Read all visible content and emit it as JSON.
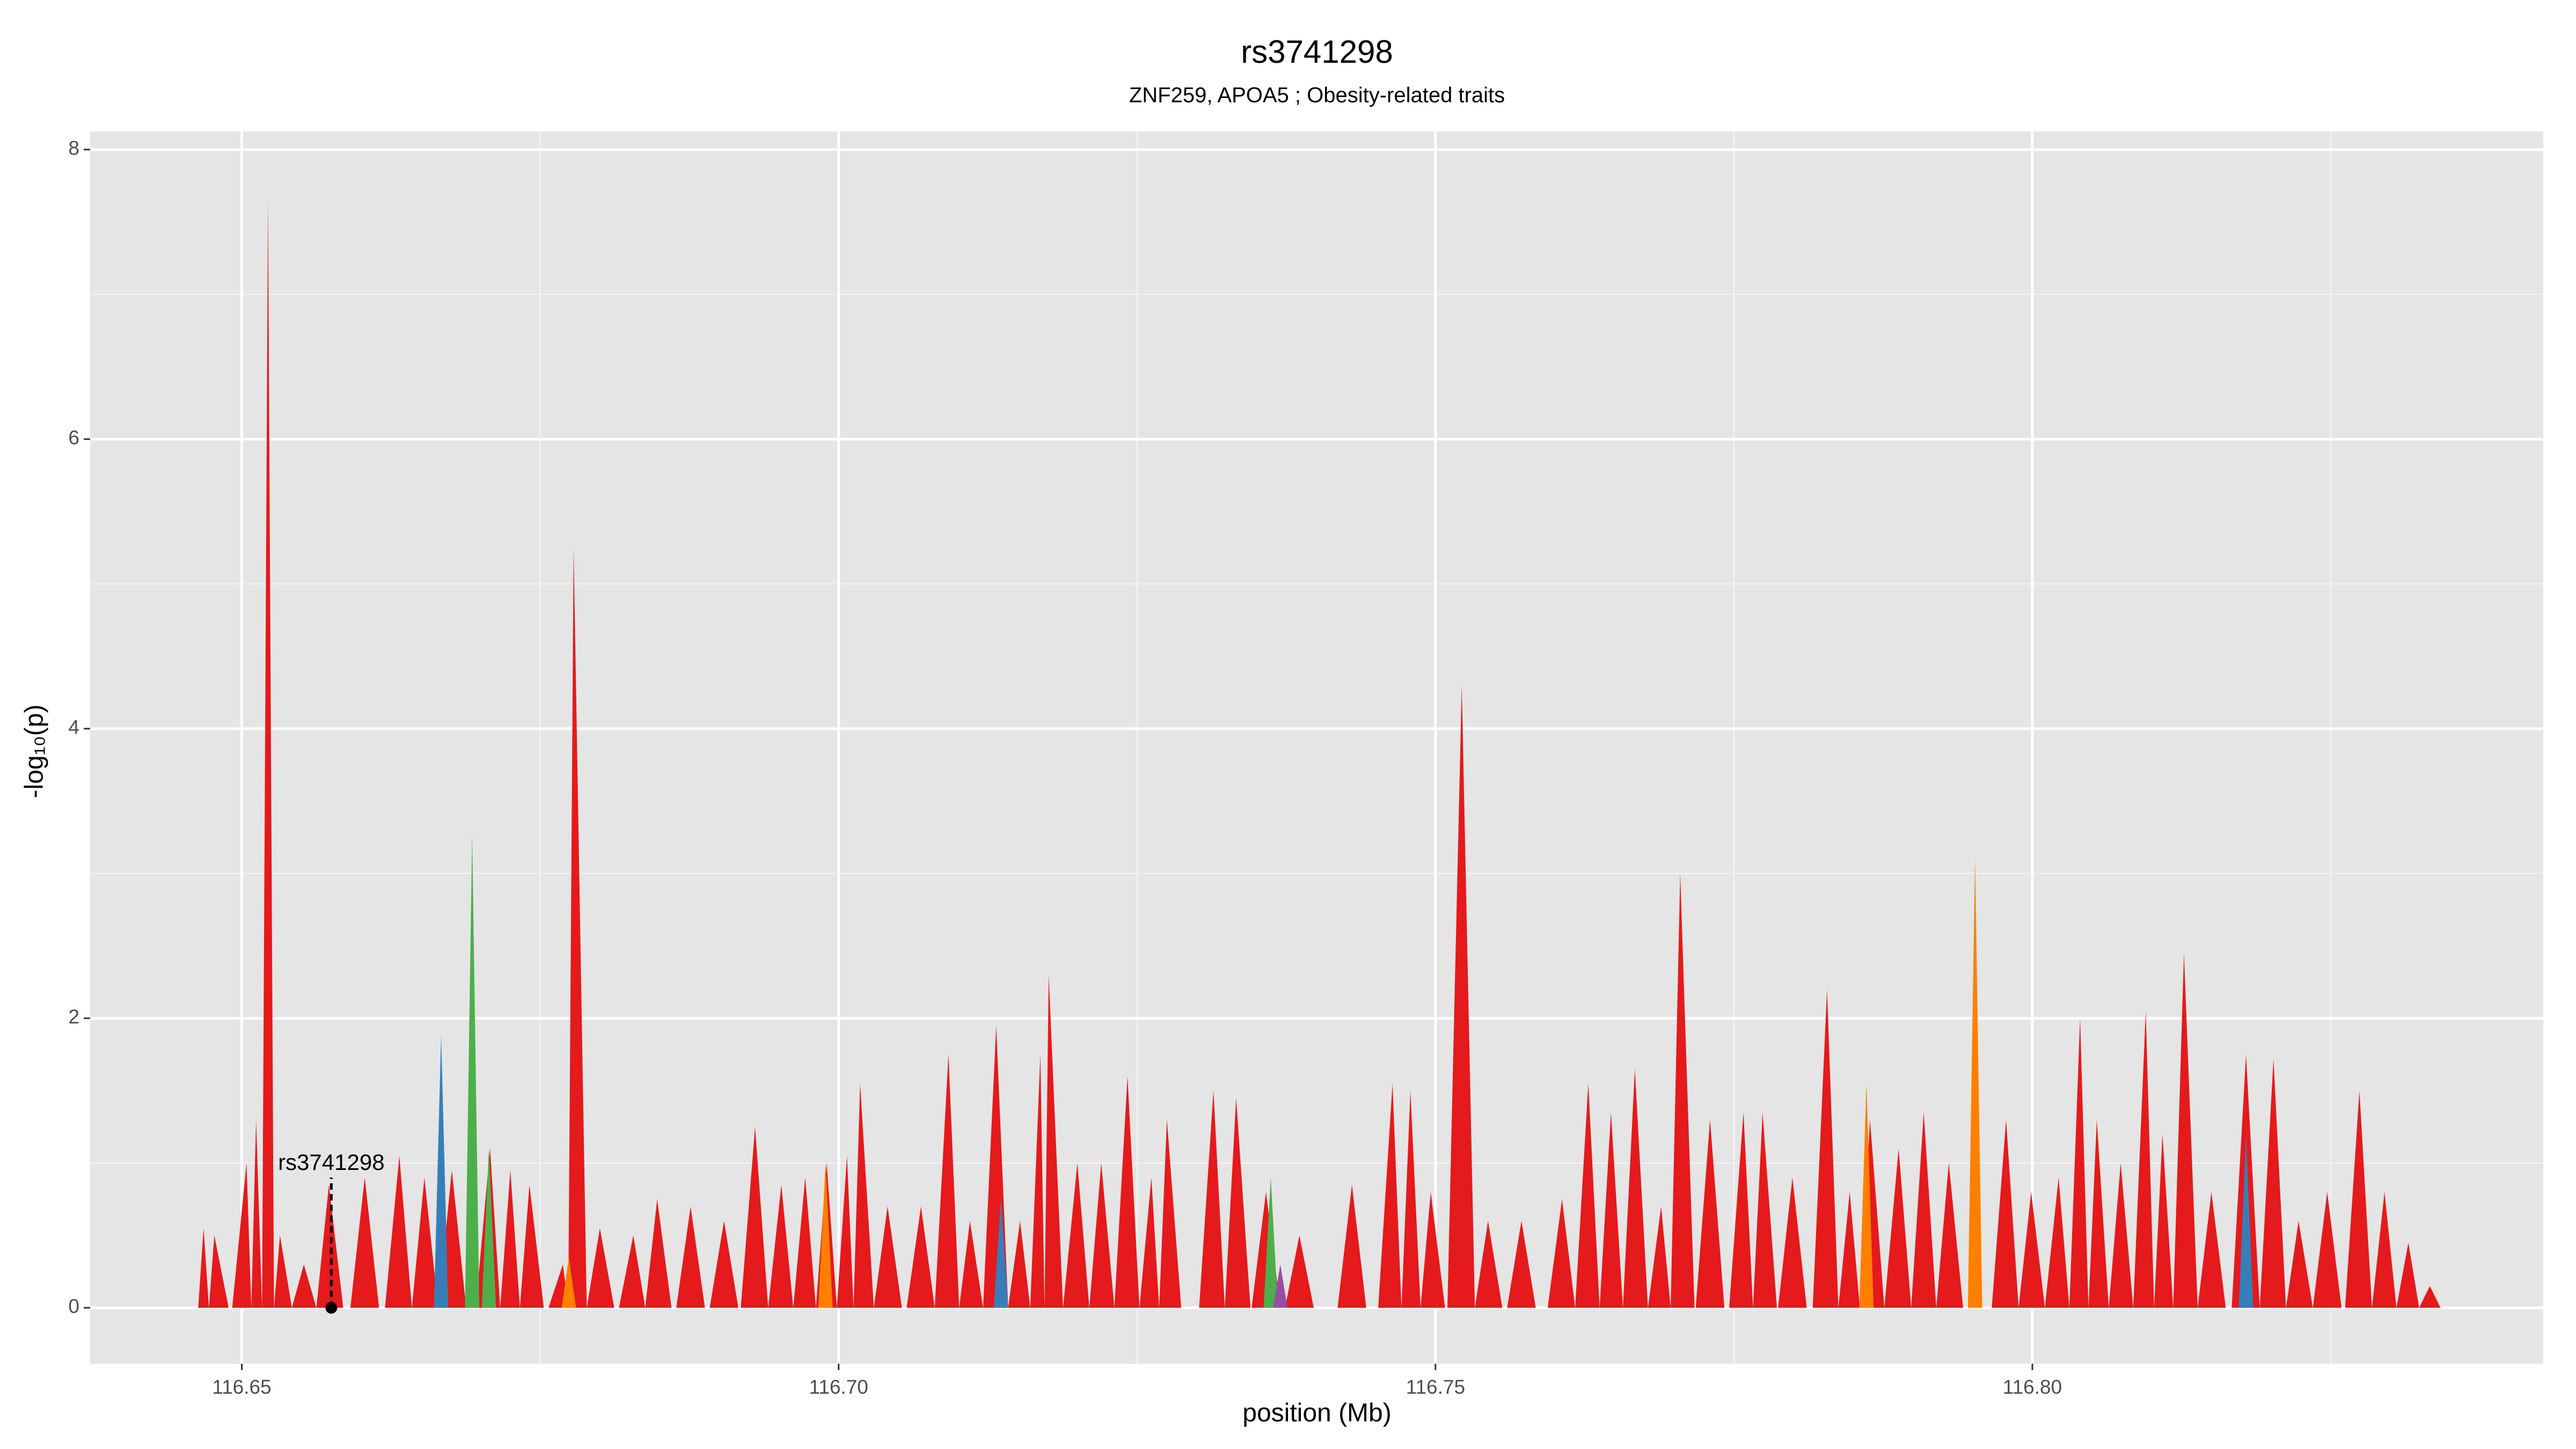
{
  "chart_data": {
    "type": "spike-area",
    "title": "rs3741298",
    "subtitle": "ZNF259, APOA5 ; Obesity-related traits",
    "x_label": "position (Mb)",
    "y_label": "-log₁₀(p)",
    "xlim": [
      116.6373,
      116.8428
    ],
    "ylim": [
      -0.386,
      8.125
    ],
    "xticks": [
      116.65,
      {
        "value": 116.7,
        "label": "116.70"
      },
      116.75,
      {
        "value": 116.8,
        "label": "116.80"
      }
    ],
    "yticks": [
      0,
      2,
      4,
      6,
      8
    ],
    "grid": true,
    "background": "#e5e5e5",
    "series": [
      {
        "color": "#e41a1c",
        "x": [
          116.6468,
          116.6477,
          116.6504,
          116.6512,
          116.6522,
          116.6532,
          116.6552,
          116.6573,
          116.6603,
          116.6632,
          116.6653,
          116.6676,
          116.6708,
          116.6725,
          116.6741,
          116.6769,
          116.6778,
          116.68,
          116.6828,
          116.6848,
          116.6876,
          116.6904,
          116.693,
          116.6952,
          116.6972,
          116.699,
          116.7007,
          116.7018,
          116.7041,
          116.7069,
          116.7092,
          116.711,
          116.7132,
          116.7152,
          116.7169,
          116.7176,
          116.72,
          116.722,
          116.7242,
          116.7262,
          116.7275,
          116.7314,
          116.7333,
          116.7358,
          116.7386,
          116.743,
          116.7464,
          116.7479,
          116.7496,
          116.7522,
          116.7544,
          116.7572,
          116.7606,
          116.7628,
          116.7647,
          116.7667,
          116.7689,
          116.7705,
          116.773,
          116.7758,
          116.7774,
          116.7799,
          116.7828,
          116.7847,
          116.7864,
          116.7888,
          116.7909,
          116.793,
          116.7978,
          116.7999,
          116.8022,
          116.804,
          116.8054,
          116.8074,
          116.8095,
          116.8109,
          116.8127,
          116.815,
          116.8179,
          116.8202,
          116.8223,
          116.8247,
          116.8274,
          116.8295,
          116.8315,
          116.8333
        ],
        "values": [
          0.55,
          0.5,
          1.0,
          1.3,
          7.65,
          0.5,
          0.3,
          0.85,
          0.9,
          1.05,
          0.9,
          0.95,
          1.1,
          0.95,
          0.85,
          0.3,
          5.25,
          0.55,
          0.5,
          0.75,
          0.7,
          0.6,
          1.25,
          0.85,
          0.9,
          1.0,
          1.05,
          1.55,
          0.7,
          0.7,
          1.75,
          0.6,
          1.95,
          0.6,
          1.75,
          2.3,
          1.0,
          1.0,
          1.6,
          0.9,
          1.3,
          1.5,
          1.45,
          0.8,
          0.5,
          0.85,
          1.55,
          1.5,
          0.8,
          4.3,
          0.6,
          0.6,
          0.75,
          1.55,
          1.35,
          1.65,
          0.7,
          3.0,
          1.3,
          1.35,
          1.35,
          0.9,
          2.2,
          0.8,
          1.3,
          1.1,
          1.35,
          1.0,
          1.3,
          0.8,
          0.9,
          2.0,
          1.3,
          1.0,
          2.05,
          1.2,
          2.45,
          0.8,
          1.75,
          1.72,
          0.6,
          0.8,
          1.5,
          0.8,
          0.45,
          0.15
        ]
      },
      {
        "color": "#377eb8",
        "x": [
          116.6667,
          116.7136,
          116.8179
        ],
        "values": [
          1.88,
          0.75,
          1.2
        ]
      },
      {
        "color": "#4daf4a",
        "x": [
          116.6693,
          116.6707,
          116.7362
        ],
        "values": [
          3.27,
          1.1,
          0.9
        ]
      },
      {
        "color": "#ff7f00",
        "x": [
          116.6774,
          116.6989,
          116.7861,
          116.7952
        ],
        "values": [
          0.35,
          1.0,
          1.55,
          3.1
        ]
      },
      {
        "color": "#984ea3",
        "x": [
          116.737
        ],
        "values": [
          0.3
        ]
      }
    ],
    "annotations": [
      {
        "label": "rs3741298",
        "x": 116.6575,
        "y": 0,
        "line_top": 0.9
      }
    ]
  }
}
